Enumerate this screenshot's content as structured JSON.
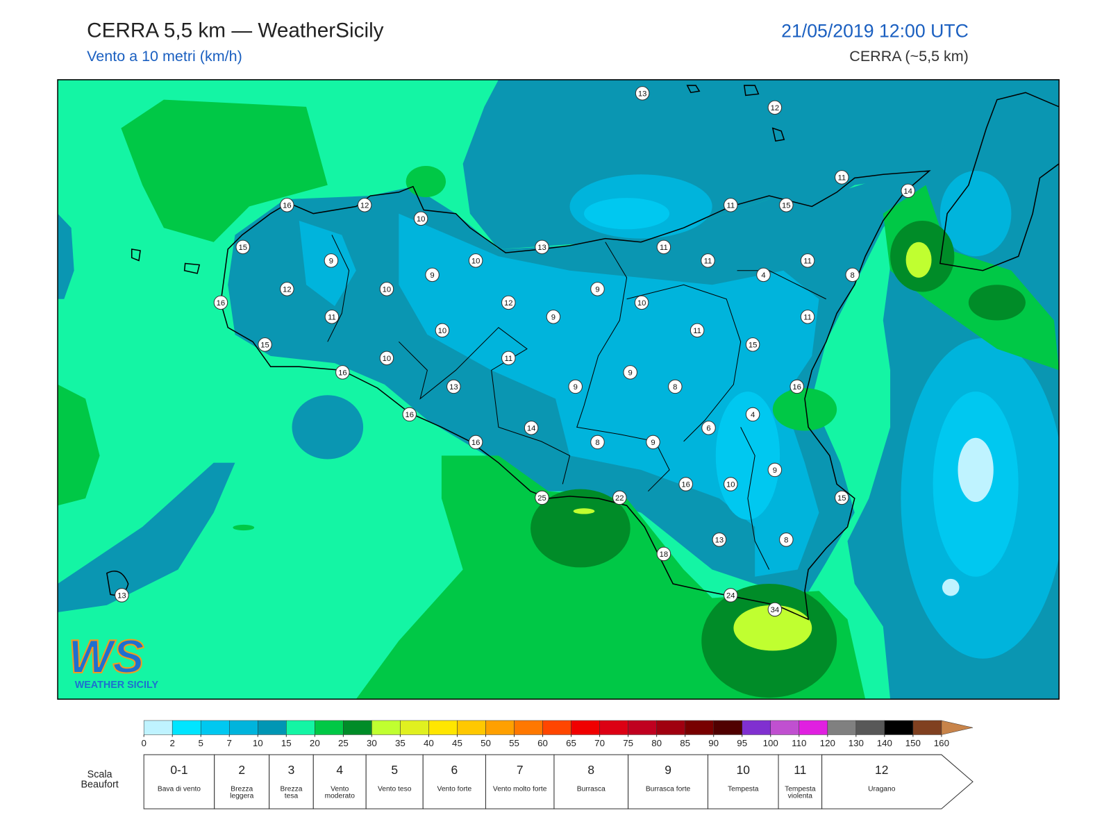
{
  "header": {
    "title": "CERRA 5,5 km — WeatherSicily",
    "subtitle": "Vento a 10 metri (km/h)",
    "datetime": "21/05/2019 12:00 UTC",
    "model": "CERRA (~5,5 km)"
  },
  "map": {
    "stations": [
      13,
      12,
      11,
      14,
      11,
      15,
      16,
      12,
      10,
      15,
      13,
      11,
      11,
      11,
      9,
      10,
      9,
      4,
      8,
      12,
      10,
      9,
      16,
      12,
      10,
      9,
      11,
      11,
      10,
      11,
      15,
      15,
      10,
      11,
      16,
      9,
      13,
      9,
      8,
      16,
      16,
      4,
      14,
      6,
      16,
      8,
      9,
      9,
      16,
      10,
      25,
      22,
      15,
      13,
      8,
      18,
      24,
      34,
      13
    ]
  },
  "colorbar": {
    "ticks": [
      0,
      2,
      5,
      7,
      10,
      15,
      20,
      25,
      30,
      35,
      40,
      45,
      50,
      55,
      60,
      65,
      70,
      75,
      80,
      85,
      90,
      95,
      100,
      110,
      120,
      130,
      140,
      150,
      160
    ],
    "colors": [
      "#bff3ff",
      "#00e5ff",
      "#00c8f0",
      "#00b4dc",
      "#0096b4",
      "#14f5a4",
      "#00c846",
      "#008c28",
      "#c0ff30",
      "#e0f020",
      "#ffe600",
      "#ffc800",
      "#ffa000",
      "#ff7800",
      "#ff4600",
      "#f00000",
      "#dc0014",
      "#c00020",
      "#a00010",
      "#780000",
      "#500000",
      "#8030d0",
      "#c050d0",
      "#e020e0",
      "#808080",
      "#585858",
      "#000000",
      "#804020"
    ],
    "arrow_color": "#c8844a"
  },
  "beaufort": {
    "label": "Scala Beaufort",
    "classes": [
      {
        "force": "0-1",
        "name": "Bava di vento"
      },
      {
        "force": "2",
        "name": "Brezza leggera"
      },
      {
        "force": "3",
        "name": "Brezza tesa"
      },
      {
        "force": "4",
        "name": "Vento moderato"
      },
      {
        "force": "5",
        "name": "Vento teso"
      },
      {
        "force": "6",
        "name": "Vento forte"
      },
      {
        "force": "7",
        "name": "Vento molto forte"
      },
      {
        "force": "8",
        "name": "Burrasca"
      },
      {
        "force": "9",
        "name": "Burrasca forte"
      },
      {
        "force": "10",
        "name": "Tempesta"
      },
      {
        "force": "11",
        "name": "Tempesta violenta"
      },
      {
        "force": "12",
        "name": "Uragano"
      }
    ]
  },
  "logo": {
    "letters": "WS",
    "text": "WEATHER SICILY"
  }
}
